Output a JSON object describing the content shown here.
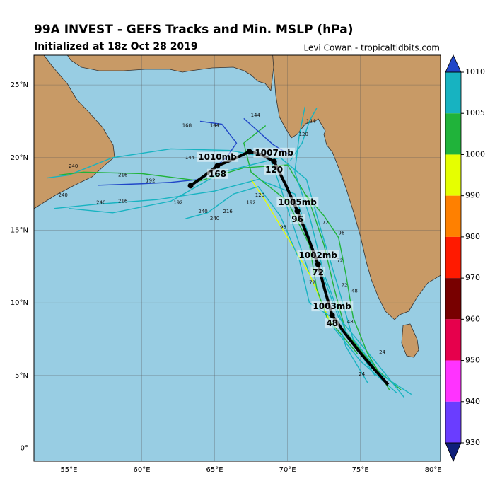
{
  "chart_data": {
    "type": "track_map",
    "title": "99A INVEST - GEFS Tracks and Min. MSLP (hPa)",
    "subtitle": "Initialized at 18z Oct 28 2019",
    "credit": "Levi Cowan - tropicaltidbits.com",
    "xlim": [
      52.6,
      80.5
    ],
    "ylim": [
      -0.9,
      27.05
    ],
    "xticks": [
      {
        "value": 55,
        "label": "55°E"
      },
      {
        "value": 60,
        "label": "60°E"
      },
      {
        "value": 65,
        "label": "65°E"
      },
      {
        "value": 70,
        "label": "70°E"
      },
      {
        "value": 75,
        "label": "75°E"
      },
      {
        "value": 80,
        "label": "80°E"
      }
    ],
    "yticks": [
      {
        "value": 0,
        "label": "0°"
      },
      {
        "value": 5,
        "label": "5°N"
      },
      {
        "value": 10,
        "label": "10°N"
      },
      {
        "value": 15,
        "label": "15°N"
      },
      {
        "value": 20,
        "label": "20°N"
      },
      {
        "value": 25,
        "label": "25°N"
      }
    ],
    "grid": true,
    "colorbar": {
      "ticks": [
        1010,
        1005,
        1000,
        990,
        980,
        970,
        960,
        950,
        940,
        930
      ],
      "colors": [
        "#17b3c1",
        "#20b33a",
        "#e6ff00",
        "#ff8000",
        "#ff1a00",
        "#780000",
        "#e6004c",
        "#ff33ff",
        "#6a3dff"
      ],
      "top_color": "#2046c8",
      "bottom_color": "#0f1f7a"
    },
    "mean_track": {
      "color": "#000000",
      "lon": [
        76.9,
        75.9,
        74.95,
        73.85,
        73.06,
        72.57,
        72.09,
        71.41,
        70.68,
        69.9,
        69.08,
        68.2,
        67.38,
        66.26,
        65.19,
        64.32,
        63.35
      ],
      "lat": [
        4.37,
        5.49,
        6.61,
        8.02,
        9.15,
        10.85,
        12.66,
        14.51,
        16.32,
        18.07,
        19.73,
        20.22,
        20.41,
        19.88,
        19.44,
        18.76,
        18.07
      ],
      "points": [
        {
          "lon": 73.06,
          "lat": 9.15,
          "pressure": "1003mb",
          "hour": 48
        },
        {
          "lon": 72.09,
          "lat": 12.66,
          "pressure": "1002mb",
          "hour": 72
        },
        {
          "lon": 70.68,
          "lat": 16.32,
          "pressure": "1005mb",
          "hour": 96
        },
        {
          "lon": 69.08,
          "lat": 19.73,
          "pressure": "1007mb",
          "hour": 120
        },
        {
          "lon": 65.19,
          "lat": 19.44,
          "pressure": "1010mb",
          "hour": 168
        }
      ],
      "dots": [
        {
          "lon": 67.38,
          "lat": 20.41
        },
        {
          "lon": 63.35,
          "lat": 18.07
        }
      ]
    },
    "members": [
      {
        "color": "#17b3c1",
        "lon": [
          77.5,
          75,
          73,
          71.5,
          70.5,
          69.5,
          68.8,
          66,
          62,
          58,
          55,
          53.5
        ],
        "lat": [
          3.8,
          6,
          8.5,
          12,
          15,
          18,
          20,
          20.5,
          20.6,
          20,
          18.8,
          18.6
        ]
      },
      {
        "color": "#20b33a",
        "lon": [
          77.8,
          76,
          74,
          73.2,
          72.5,
          71.5,
          70,
          67,
          64,
          60,
          56,
          54.3
        ],
        "lat": [
          4,
          5.5,
          8,
          11,
          14,
          17,
          19.5,
          19.3,
          18.4,
          18.9,
          19,
          18.8
        ]
      },
      {
        "color": "#17b3c1",
        "lon": [
          78,
          76,
          73.5,
          72,
          70.5,
          68,
          65,
          61,
          57,
          54
        ],
        "lat": [
          3.5,
          6,
          9,
          13,
          17.5,
          18.5,
          17.7,
          17.1,
          16.8,
          16.5
        ]
      },
      {
        "color": "#2046c8",
        "lon": [
          64,
          65.5,
          66.5,
          65.8,
          64,
          62,
          60,
          57
        ],
        "lat": [
          22.5,
          22.3,
          21,
          20,
          18.5,
          18.3,
          18.2,
          18.1
        ]
      },
      {
        "color": "#e6ff00",
        "lon": [
          73,
          71.5,
          70,
          68.5,
          67.5
        ],
        "lat": [
          8.5,
          12,
          14.5,
          17,
          18.5
        ]
      },
      {
        "color": "#17b3c1",
        "lon": [
          76,
          74,
          72.5,
          71.5,
          70.5,
          70.8,
          71.2
        ],
        "lat": [
          5,
          8,
          12,
          16,
          19,
          21.5,
          23.5
        ]
      },
      {
        "color": "#20b33a",
        "lon": [
          74.8,
          72.7,
          72,
          71.5,
          70,
          67.5,
          67,
          68.5
        ],
        "lat": [
          6.5,
          9,
          11,
          14,
          17,
          19,
          21,
          22.2
        ]
      },
      {
        "color": "#17b3c1",
        "lon": [
          78.5,
          76.5,
          74.5,
          73.5,
          72.3,
          71.3,
          69.5,
          65.5,
          62,
          58,
          55
        ],
        "lat": [
          3.7,
          5,
          7.5,
          11,
          15,
          18.5,
          20,
          19,
          17,
          16.2,
          16.5
        ]
      },
      {
        "color": "#20b33a",
        "lon": [
          77,
          75.5,
          74.5,
          74,
          73.5,
          72.5,
          71.2
        ],
        "lat": [
          4,
          6.5,
          9,
          12,
          14.5,
          16,
          17.5
        ]
      },
      {
        "color": "#17b3c1",
        "lon": [
          75.5,
          74,
          73.5,
          71.5,
          70.8,
          69.5,
          68,
          66.3,
          64.5,
          63
        ],
        "lat": [
          4.5,
          7,
          8.7,
          10,
          13,
          16,
          18,
          17.5,
          16.2,
          15.8
        ]
      },
      {
        "color": "#2046c8",
        "lon": [
          67,
          68,
          69,
          70.3
        ],
        "lat": [
          22.7,
          21.8,
          20.9,
          20.1
        ]
      },
      {
        "color": "#17b3c1",
        "lon": [
          70.2,
          71,
          71.5,
          72
        ],
        "lat": [
          19.8,
          21,
          22.5,
          23.4
        ]
      }
    ],
    "member_labels": [
      {
        "text": 144,
        "lon": 67.8,
        "lat": 22.9
      },
      {
        "text": 168,
        "lon": 63.1,
        "lat": 22.2
      },
      {
        "text": 144,
        "lon": 65.0,
        "lat": 22.2
      },
      {
        "text": 144,
        "lon": 71.6,
        "lat": 22.5
      },
      {
        "text": 120,
        "lon": 71.1,
        "lat": 21.6
      },
      {
        "text": 144,
        "lon": 63.3,
        "lat": 20.0
      },
      {
        "text": 240,
        "lon": 55.3,
        "lat": 19.4
      },
      {
        "text": 216,
        "lon": 58.7,
        "lat": 18.8
      },
      {
        "text": 192,
        "lon": 60.6,
        "lat": 18.4
      },
      {
        "text": 240,
        "lon": 54.6,
        "lat": 17.4
      },
      {
        "text": 240,
        "lon": 57.2,
        "lat": 16.9
      },
      {
        "text": 216,
        "lon": 58.7,
        "lat": 17.0
      },
      {
        "text": 192,
        "lon": 62.5,
        "lat": 16.9
      },
      {
        "text": 240,
        "lon": 64.2,
        "lat": 16.3
      },
      {
        "text": 216,
        "lon": 65.9,
        "lat": 16.3
      },
      {
        "text": 240,
        "lon": 65.0,
        "lat": 15.8
      },
      {
        "text": 192,
        "lon": 67.5,
        "lat": 16.9
      },
      {
        "text": 120,
        "lon": 68.1,
        "lat": 17.4
      },
      {
        "text": 96,
        "lon": 69.7,
        "lat": 15.2
      },
      {
        "text": 72,
        "lon": 72.6,
        "lat": 15.5
      },
      {
        "text": 96,
        "lon": 73.7,
        "lat": 14.8
      },
      {
        "text": 72,
        "lon": 73.6,
        "lat": 12.9
      },
      {
        "text": 72,
        "lon": 71.7,
        "lat": 11.4
      },
      {
        "text": 72,
        "lon": 73.9,
        "lat": 11.2
      },
      {
        "text": 48,
        "lon": 74.6,
        "lat": 10.8
      },
      {
        "text": 48,
        "lon": 74.3,
        "lat": 8.7
      },
      {
        "text": 24,
        "lon": 76.5,
        "lat": 6.6
      },
      {
        "text": 24,
        "lon": 75.1,
        "lat": 5.1
      }
    ]
  }
}
